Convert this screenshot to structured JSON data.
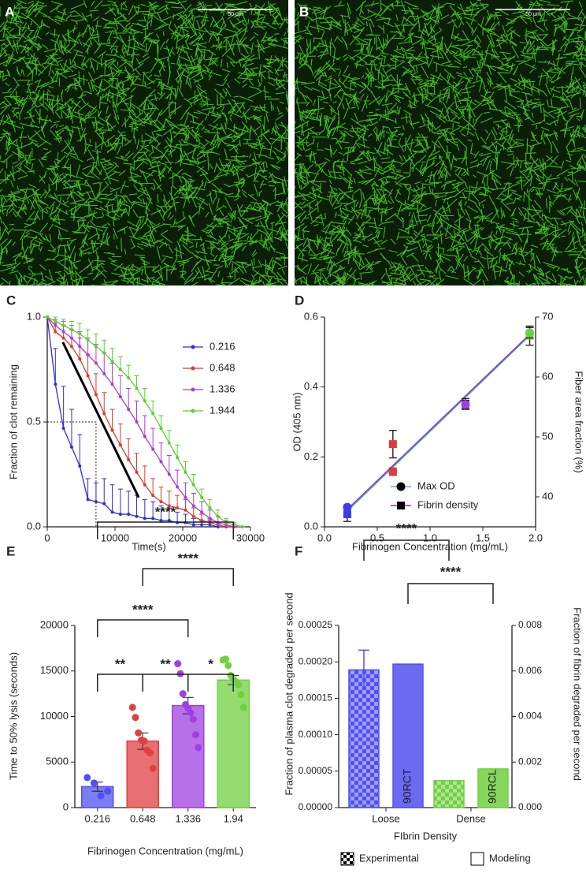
{
  "images": [
    {
      "label": "A",
      "scale_bar": "50 μm"
    },
    {
      "label": "B",
      "scale_bar": "50 μm"
    }
  ],
  "chart_data": [
    {
      "type": "line",
      "label": "C",
      "y_label": "Fraction of clot remaining",
      "x_label": "Time(s)",
      "xlim": [
        0,
        30000
      ],
      "xticks": [
        0,
        10000,
        20000,
        30000
      ],
      "ylim": [
        0,
        1
      ],
      "yticks": [
        {
          "value": 0,
          "label": "0.0"
        },
        {
          "value": 0.5,
          "label": "0.5"
        },
        {
          "value": 1,
          "label": "1.0"
        }
      ],
      "x": [
        0,
        1200,
        2400,
        3600,
        4800,
        6000,
        7200,
        8400,
        9600,
        10800,
        12000,
        13200,
        14400,
        15600,
        16800,
        18000,
        19200,
        20400,
        21600,
        22800,
        24000,
        25200,
        26400,
        27600,
        28800
      ],
      "series": [
        {
          "name": "0.216",
          "color": "#2f2fd8",
          "values": [
            1,
            0.68,
            0.47,
            0.38,
            0.29,
            0.13,
            0.12,
            0.11,
            0.07,
            0.06,
            0.06,
            0.05,
            0.04,
            0.04,
            0.03,
            0.03,
            0.02,
            0.02,
            0.01,
            0.01,
            0.01,
            0,
            0,
            0,
            0
          ],
          "errors": [
            0,
            0.17,
            0.2,
            0.18,
            0.15,
            0.1,
            0.09,
            0.12,
            0.13,
            0.12,
            0.11,
            0.1,
            0.09,
            0.08,
            0.07,
            0.06,
            0.05,
            0.04,
            0.03,
            0.02,
            0.02,
            0.01,
            0,
            0,
            0
          ]
        },
        {
          "name": "0.648",
          "color": "#d83b2f",
          "values": [
            1,
            0.93,
            0.9,
            0.86,
            0.8,
            0.72,
            0.63,
            0.54,
            0.46,
            0.39,
            0.32,
            0.26,
            0.2,
            0.15,
            0.12,
            0.1,
            0.09,
            0.08,
            0.05,
            0.03,
            0.02,
            0.01,
            0,
            0,
            0
          ],
          "errors": [
            0,
            0.04,
            0.06,
            0.08,
            0.1,
            0.1,
            0.1,
            0.1,
            0.1,
            0.1,
            0.1,
            0.09,
            0.09,
            0.08,
            0.07,
            0.07,
            0.06,
            0.05,
            0.04,
            0.03,
            0.02,
            0.01,
            0,
            0,
            0
          ]
        },
        {
          "name": "1.336",
          "color": "#a63fd8",
          "values": [
            1,
            0.96,
            0.93,
            0.9,
            0.86,
            0.82,
            0.78,
            0.73,
            0.68,
            0.62,
            0.56,
            0.5,
            0.43,
            0.37,
            0.31,
            0.25,
            0.19,
            0.14,
            0.1,
            0.07,
            0.04,
            0.02,
            0.01,
            0,
            0
          ],
          "errors": [
            0,
            0.03,
            0.05,
            0.06,
            0.07,
            0.08,
            0.09,
            0.1,
            0.1,
            0.1,
            0.1,
            0.1,
            0.1,
            0.1,
            0.09,
            0.09,
            0.08,
            0.07,
            0.06,
            0.05,
            0.04,
            0.03,
            0.02,
            0.01,
            0
          ]
        },
        {
          "name": "1.944",
          "color": "#5ccf2f",
          "values": [
            1,
            0.98,
            0.96,
            0.94,
            0.92,
            0.89,
            0.86,
            0.83,
            0.79,
            0.75,
            0.71,
            0.66,
            0.6,
            0.54,
            0.47,
            0.4,
            0.33,
            0.26,
            0.2,
            0.14,
            0.09,
            0.05,
            0.02,
            0.01,
            0
          ],
          "errors": [
            0,
            0.02,
            0.03,
            0.04,
            0.05,
            0.05,
            0.06,
            0.06,
            0.06,
            0.06,
            0.06,
            0.06,
            0.06,
            0.06,
            0.06,
            0.06,
            0.06,
            0.05,
            0.05,
            0.04,
            0.04,
            0.03,
            0.02,
            0.01,
            0
          ]
        }
      ],
      "fit_line": {
        "x": [
          2300,
          13500
        ],
        "y": [
          0.88,
          0.14
        ]
      },
      "half_time": {
        "x": 7200,
        "y": 0.5
      }
    },
    {
      "type": "scatter",
      "label": "D",
      "y_label": "OD (405 nm)",
      "y2_label": "Fiber area fraction (%)",
      "x_label": "Fibrinogen Concentration (mg/mL)",
      "xlim": [
        0,
        2
      ],
      "xticks": [
        {
          "value": 0,
          "label": "0.0"
        },
        {
          "value": 0.5,
          "label": "0.5"
        },
        {
          "value": 1,
          "label": "1.0"
        },
        {
          "value": 1.5,
          "label": "1.5"
        },
        {
          "value": 2,
          "label": "2.0"
        }
      ],
      "ylim": [
        0,
        0.6
      ],
      "yticks": [
        {
          "value": 0,
          "label": "0.0"
        },
        {
          "value": 0.2,
          "label": "0.2"
        },
        {
          "value": 0.4,
          "label": "0.4"
        },
        {
          "value": 0.6,
          "label": "0.6"
        }
      ],
      "y2lim": [
        35,
        70
      ],
      "y2ticks": [
        40,
        50,
        60,
        70
      ],
      "x": [
        0.216,
        0.648,
        1.336,
        1.944
      ],
      "point_colors": [
        "#3b3bf0",
        "#e03c3c",
        "#a23fe0",
        "#6cd040"
      ],
      "series": [
        {
          "name": "Max OD",
          "color": "#40c0c8",
          "marker": "circle",
          "values": [
            0.056,
            0.158,
            0.35,
            0.555
          ],
          "errors": [
            0.006,
            0.01,
            0.012,
            0.015
          ],
          "fit": {
            "x": [
              0.216,
              1.944
            ],
            "y": [
              0.045,
              0.547
            ]
          }
        },
        {
          "name": "Fibrin density",
          "color": "#9b2fb5",
          "marker": "square",
          "axis": "y2",
          "values": [
            37.1,
            48.8,
            55.5,
            66.9
          ],
          "errors": [
            1.2,
            2.3,
            0.9,
            1.6
          ],
          "fit": {
            "x": [
              0.216,
              1.944
            ],
            "y": [
              37.9,
              67.1
            ]
          }
        }
      ]
    },
    {
      "type": "bar",
      "label": "E",
      "y_label": "Time to 50% lysis (seconds)",
      "x_label": "Fibrinogen Concentration (mg/mL)",
      "ylim": [
        0,
        20000
      ],
      "yticks": [
        0,
        5000,
        10000,
        15000,
        20000
      ],
      "categories": [
        "0.216",
        "0.648",
        "1.336",
        "1.94"
      ],
      "colors": [
        "#5050f0",
        "#e04040",
        "#a040e0",
        "#70d040"
      ],
      "values": [
        2300,
        7300,
        11200,
        14000
      ],
      "errors": [
        500,
        900,
        900,
        500
      ],
      "points": [
        [
          3300,
          2700,
          1300,
          1800
        ],
        [
          11000,
          9900,
          8200,
          7400,
          7300,
          6300,
          6000,
          4300
        ],
        [
          15800,
          14700,
          12500,
          11300,
          10900,
          10400,
          9700,
          8000,
          6600
        ],
        [
          16200,
          16300,
          15600,
          14500,
          14100,
          13800,
          13500,
          12400,
          11000
        ]
      ],
      "annotations": [
        {
          "from": "0.216",
          "to": "0.648",
          "text": "**"
        },
        {
          "from": "0.648",
          "to": "1.336",
          "text": "**"
        },
        {
          "from": "1.336",
          "to": "1.94",
          "text": "*"
        },
        {
          "from": "0.216",
          "to": "1.336",
          "text": "****"
        },
        {
          "from": "0.648",
          "to": "1.94",
          "text": "****"
        },
        {
          "from": "0.216",
          "to": "1.94",
          "text": "****"
        }
      ]
    },
    {
      "type": "bar",
      "label": "F",
      "y_label": "Fraction of plasma clot degraded per second",
      "y2_label": "Fraction of fibrin degraded per second",
      "x_label": "FIbrin Density",
      "ylim": [
        0,
        0.00025
      ],
      "yticks": [
        {
          "value": 0,
          "label": "0.00000"
        },
        {
          "value": 5e-05,
          "label": "0.00005"
        },
        {
          "value": 0.0001,
          "label": "0.00010"
        },
        {
          "value": 0.00015,
          "label": "0.00015"
        },
        {
          "value": 0.0002,
          "label": "0.00020"
        },
        {
          "value": 0.00025,
          "label": "0.00025"
        }
      ],
      "y2lim": [
        0,
        0.008
      ],
      "y2ticks": [
        {
          "value": 0,
          "label": "0.000"
        },
        {
          "value": 0.002,
          "label": "0.002"
        },
        {
          "value": 0.004,
          "label": "0.004"
        },
        {
          "value": 0.006,
          "label": "0.006"
        },
        {
          "value": 0.008,
          "label": "0.008"
        }
      ],
      "categories": [
        "Loose",
        "Dense"
      ],
      "colors": [
        "#5050f0",
        "#70d040"
      ],
      "series": [
        {
          "name": "Experimental",
          "pattern": "checker",
          "values": [
            0.000189,
            3.7e-05
          ],
          "errors": [
            2.7e-05,
            0
          ]
        },
        {
          "name": "Modeling",
          "axis": "y2",
          "values": [
            0.0063,
            0.0017
          ],
          "bar_labels": [
            "90RCT",
            "90RCL"
          ]
        }
      ],
      "annotations": [
        {
          "text": "****"
        },
        {
          "text": "****"
        }
      ]
    }
  ]
}
